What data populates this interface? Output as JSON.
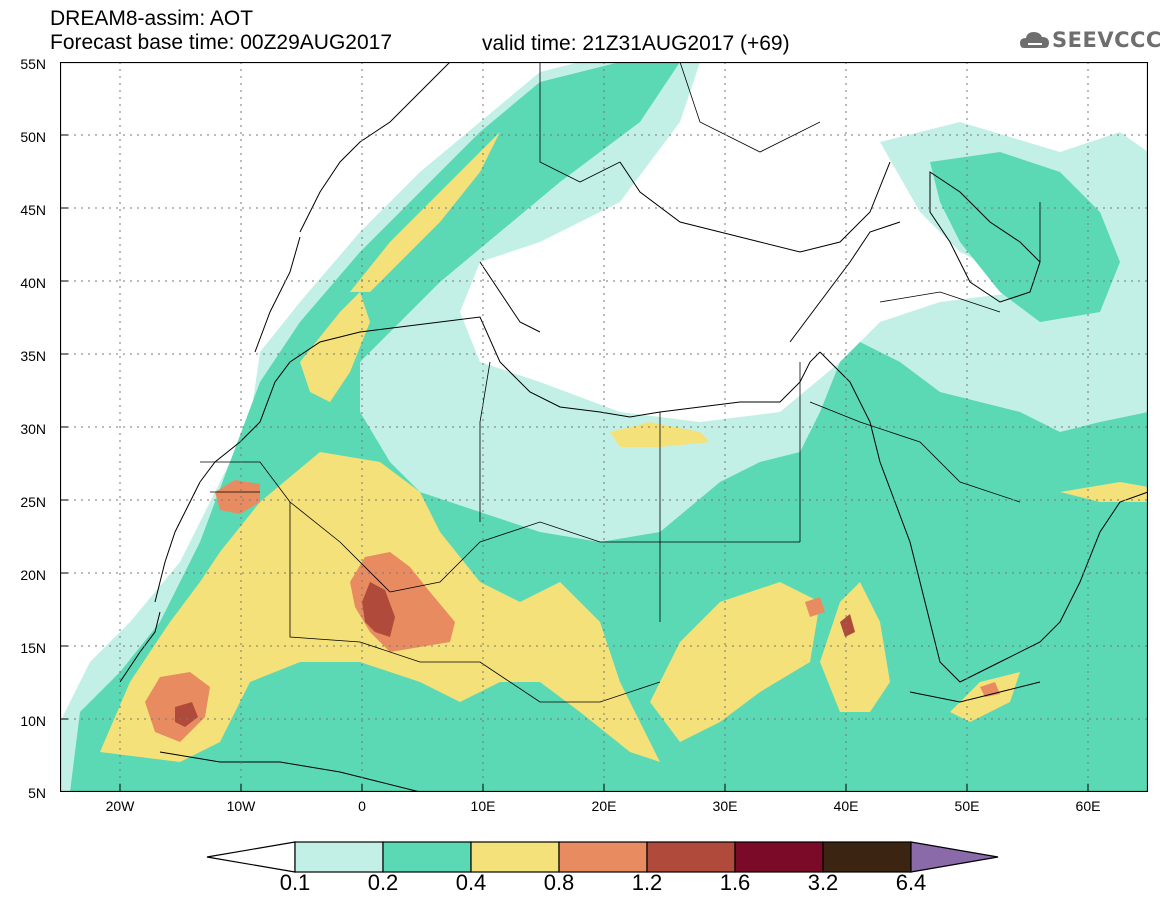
{
  "header": {
    "title": "DREAM8-assim: AOT",
    "base_time": "Forecast base time: 00Z29AUG2017",
    "valid_time": "valid time: 21Z31AUG2017 (+69)"
  },
  "logo": {
    "text": "SEEVCCC",
    "icon": "cloud-icon"
  },
  "map": {
    "lat_ticks": [
      "55N",
      "50N",
      "45N",
      "40N",
      "35N",
      "30N",
      "25N",
      "20N",
      "15N",
      "10N",
      "5N"
    ],
    "lon_ticks": [
      "20W",
      "10W",
      "0",
      "10E",
      "20E",
      "30E",
      "40E",
      "50E",
      "60E"
    ],
    "lat_range": [
      5,
      55
    ],
    "lon_range": [
      -25,
      65
    ],
    "grid": true
  },
  "colorbar": {
    "labels": [
      "0.1",
      "0.2",
      "0.4",
      "0.8",
      "1.2",
      "1.6",
      "3.2",
      "6.4"
    ],
    "colors": [
      "#ffffff",
      "#c2f0e6",
      "#5ad9b4",
      "#f5e17a",
      "#e88b60",
      "#b04a3a",
      "#7a0a28",
      "#3b2412",
      "#8a6aa8"
    ]
  }
}
